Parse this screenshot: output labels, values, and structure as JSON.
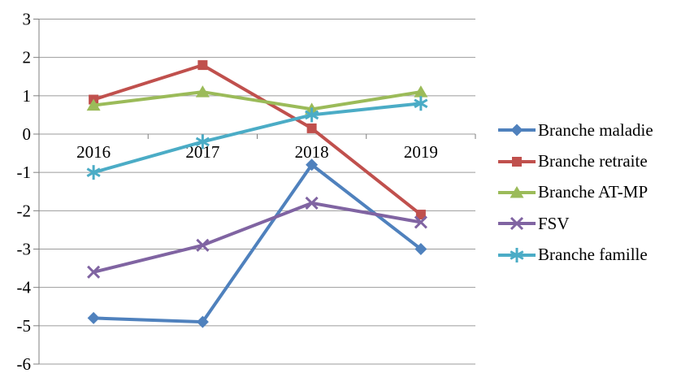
{
  "chart_data": {
    "type": "line",
    "title": "",
    "xlabel": "",
    "ylabel": "",
    "categories": [
      "2016",
      "2017",
      "2018",
      "2019"
    ],
    "series": [
      {
        "name": "Branche maladie",
        "color": "#4F81BD",
        "marker": "diamond",
        "values": [
          -4.8,
          -4.9,
          -0.8,
          -3.0
        ]
      },
      {
        "name": "Branche retraite",
        "color": "#C0504D",
        "marker": "square",
        "values": [
          0.9,
          1.8,
          0.15,
          -2.1
        ]
      },
      {
        "name": "Branche AT-MP",
        "color": "#9BBB59",
        "marker": "triangle",
        "values": [
          0.75,
          1.1,
          0.65,
          1.1
        ]
      },
      {
        "name": "FSV",
        "color": "#8064A2",
        "marker": "x",
        "values": [
          -3.6,
          -2.9,
          -1.8,
          -2.3
        ]
      },
      {
        "name": "Branche famille",
        "color": "#4BACC6",
        "marker": "asterisk",
        "values": [
          -1.0,
          -0.2,
          0.5,
          0.8
        ]
      }
    ],
    "ylim": [
      -6,
      3
    ],
    "yticks": [
      3,
      2,
      1,
      0,
      -1,
      -2,
      -3,
      -4,
      -5,
      -6
    ],
    "grid": true,
    "legend_position": "right",
    "x_axis_cross": 0
  },
  "colors": {
    "background": "#FFFFFF",
    "gridline": "#9B9B9B",
    "axis": "#7F7F7F",
    "text": "#000000"
  }
}
